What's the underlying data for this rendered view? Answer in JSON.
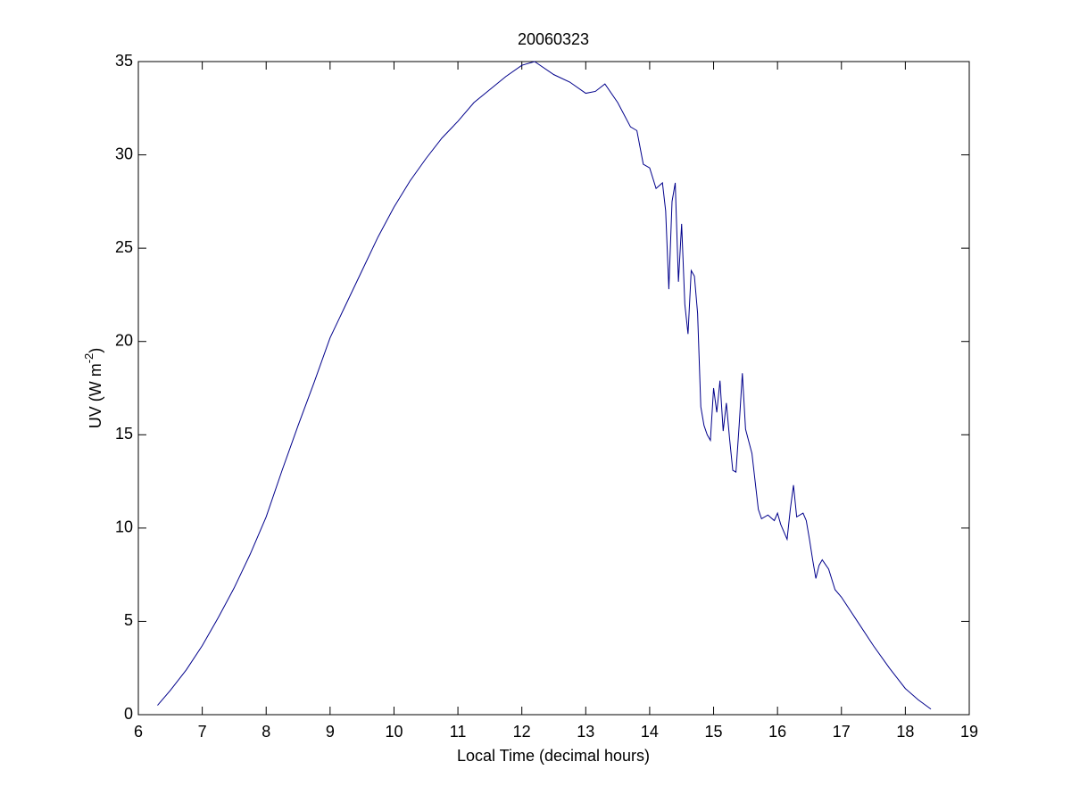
{
  "chart_data": {
    "type": "line",
    "title": "20060323",
    "xlabel": "Local Time (decimal hours)",
    "ylabel": [
      "UV (W m",
      "-2",
      ")"
    ],
    "x": [
      6.3,
      6.5,
      6.75,
      7,
      7.25,
      7.5,
      7.75,
      8,
      8.25,
      8.5,
      8.75,
      9,
      9.25,
      9.5,
      9.75,
      10,
      10.25,
      10.5,
      10.75,
      11,
      11.25,
      11.5,
      11.75,
      12,
      12.2,
      12.5,
      12.75,
      13,
      13.15,
      13.3,
      13.5,
      13.7,
      13.8,
      13.9,
      14,
      14.1,
      14.2,
      14.25,
      14.3,
      14.35,
      14.4,
      14.45,
      14.5,
      14.55,
      14.6,
      14.65,
      14.7,
      14.75,
      14.8,
      14.85,
      14.9,
      14.95,
      15,
      15.05,
      15.1,
      15.15,
      15.2,
      15.25,
      15.3,
      15.35,
      15.4,
      15.45,
      15.5,
      15.6,
      15.65,
      15.7,
      15.75,
      15.85,
      15.95,
      16,
      16.05,
      16.15,
      16.2,
      16.25,
      16.3,
      16.4,
      16.45,
      16.5,
      16.55,
      16.6,
      16.65,
      16.7,
      16.8,
      16.9,
      17,
      17.25,
      17.5,
      17.75,
      18,
      18.2,
      18.4
    ],
    "series": [
      {
        "color": "#00008b",
        "values": [
          0.5,
          1.3,
          2.4,
          3.7,
          5.2,
          6.8,
          8.6,
          10.6,
          13.1,
          15.5,
          17.8,
          20.2,
          22.0,
          23.8,
          25.6,
          27.2,
          28.6,
          29.8,
          30.9,
          31.8,
          32.8,
          33.5,
          34.2,
          34.8,
          35.0,
          34.3,
          33.9,
          33.3,
          33.4,
          33.8,
          32.8,
          31.5,
          31.3,
          29.5,
          29.3,
          28.2,
          28.5,
          27.0,
          22.8,
          27.5,
          28.5,
          23.2,
          26.3,
          22.0,
          20.4,
          23.8,
          23.5,
          21.5,
          16.5,
          15.5,
          15.0,
          14.7,
          17.5,
          16.2,
          17.9,
          15.2,
          16.7,
          14.8,
          13.1,
          13.0,
          15.5,
          18.3,
          15.3,
          14.0,
          12.5,
          11.0,
          10.5,
          10.7,
          10.4,
          10.8,
          10.2,
          9.4,
          11.0,
          12.3,
          10.6,
          10.8,
          10.4,
          9.4,
          8.3,
          7.3,
          8.0,
          8.3,
          7.8,
          6.7,
          6.3,
          5.0,
          3.7,
          2.5,
          1.4,
          0.8,
          0.3
        ]
      }
    ],
    "xlim": [
      6,
      19
    ],
    "xticks": [
      6,
      7,
      8,
      9,
      10,
      11,
      12,
      13,
      14,
      15,
      16,
      17,
      18,
      19
    ],
    "ylim": [
      0,
      35
    ],
    "yticks": [
      0,
      5,
      10,
      15,
      20,
      25,
      30,
      35
    ],
    "grid": false
  }
}
